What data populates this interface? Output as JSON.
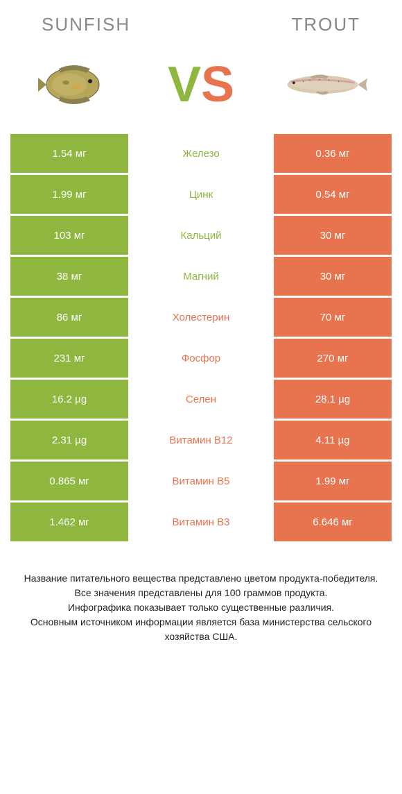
{
  "colors": {
    "green": "#8fb63f",
    "orange": "#e8744f",
    "gray_bg": "#f5f5f5",
    "title_gray": "#888888",
    "text_dark": "#222222"
  },
  "header": {
    "left": "SUNFISH",
    "right": "TROUT"
  },
  "vs": {
    "v": "V",
    "s": "S"
  },
  "rows": [
    {
      "left": "1.54 мг",
      "label": "Железо",
      "right": "0.36 мг",
      "winner": "left"
    },
    {
      "left": "1.99 мг",
      "label": "Цинк",
      "right": "0.54 мг",
      "winner": "left"
    },
    {
      "left": "103 мг",
      "label": "Кальций",
      "right": "30 мг",
      "winner": "left"
    },
    {
      "left": "38 мг",
      "label": "Магний",
      "right": "30 мг",
      "winner": "left"
    },
    {
      "left": "86 мг",
      "label": "Холестерин",
      "right": "70 мг",
      "winner": "right"
    },
    {
      "left": "231 мг",
      "label": "Фосфор",
      "right": "270 мг",
      "winner": "right"
    },
    {
      "left": "16.2 µg",
      "label": "Селен",
      "right": "28.1 µg",
      "winner": "right"
    },
    {
      "left": "2.31 µg",
      "label": "Витамин B12",
      "right": "4.11 µg",
      "winner": "right"
    },
    {
      "left": "0.865 мг",
      "label": "Витамин B5",
      "right": "1.99 мг",
      "winner": "right"
    },
    {
      "left": "1.462 мг",
      "label": "Витамин B3",
      "right": "6.646 мг",
      "winner": "right"
    }
  ],
  "footer": {
    "line1": "Название питательного вещества представлено цветом продукта-победителя.",
    "line2": "Все значения представлены для 100 граммов продукта.",
    "line3": "Инфографика показывает только существенные различия.",
    "line4": "Основным источником информации является база министерства сельского хозяйства США."
  }
}
